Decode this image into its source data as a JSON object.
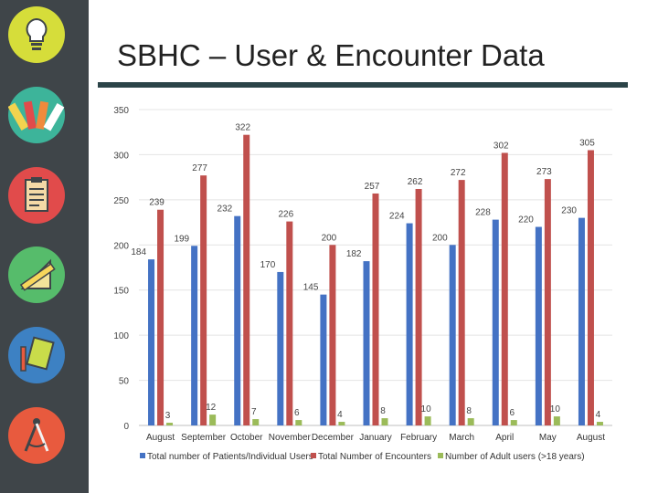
{
  "slide": {
    "title": "SBHC – User & Encounter Data"
  },
  "sidebar": {
    "icons": [
      {
        "name": "lightbulb-icon",
        "color": "#d6dd3a"
      },
      {
        "name": "color-swatch-icon",
        "color": "#3db49a"
      },
      {
        "name": "clipboard-icon",
        "color": "#e14b4b"
      },
      {
        "name": "ruler-triangle-icon",
        "color": "#56bc6b"
      },
      {
        "name": "notebook-pencil-icon",
        "color": "#3d81c3"
      },
      {
        "name": "compass-icon",
        "color": "#e85a3e"
      }
    ]
  },
  "chart_data": {
    "type": "bar",
    "title": "",
    "xlabel": "",
    "ylabel": "",
    "ylim": [
      0,
      350
    ],
    "yticks": [
      "0",
      "50",
      "100",
      "150",
      "200",
      "250",
      "300",
      "350"
    ],
    "grid": true,
    "legend_position": "bottom",
    "categories": [
      "August",
      "September",
      "October",
      "November",
      "December",
      "January",
      "February",
      "March",
      "April",
      "May",
      "August"
    ],
    "series": [
      {
        "name": "Total number of Patients/Individual Users",
        "color": "#4472c4",
        "values": [
          184,
          199,
          232,
          170,
          145,
          182,
          224,
          200,
          228,
          220,
          230
        ]
      },
      {
        "name": "Total Number of Encounters",
        "color": "#c0504d",
        "values": [
          239,
          277,
          322,
          226,
          200,
          257,
          262,
          272,
          302,
          273,
          305
        ]
      },
      {
        "name": "Number of Adult users (>18 years)",
        "color": "#9bbb59",
        "values": [
          3,
          12,
          7,
          6,
          4,
          8,
          10,
          8,
          6,
          10,
          4
        ]
      }
    ]
  }
}
